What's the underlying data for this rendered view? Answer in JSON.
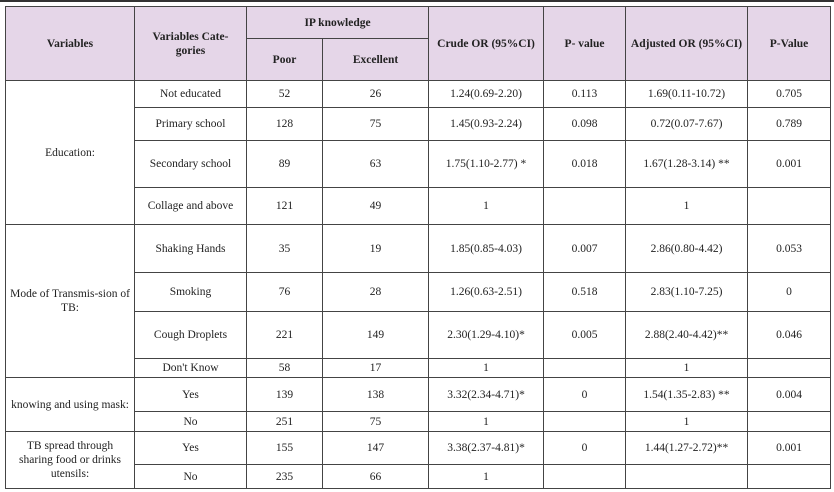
{
  "headers": {
    "variables": "Variables",
    "categories": "Variables Cate-gories",
    "ip_knowledge": "IP knowledge",
    "poor": "Poor",
    "excellent": "Excellent",
    "crude_or": "Crude OR (95%CI)",
    "p_value": "P- value",
    "adjusted_or": "Adjusted OR (95%CI)",
    "p_value2": "P-Value"
  },
  "groups": [
    {
      "variable": "Education:",
      "rows": [
        {
          "category": "Not educated",
          "poor": "52",
          "excellent": "26",
          "crude_or": "1.24(0.69-2.20)",
          "p": "0.113",
          "adj_or": "1.69(0.11-10.72)",
          "p2": "0.705"
        },
        {
          "category": "Primary school",
          "poor": "128",
          "excellent": "75",
          "crude_or": "1.45(0.93-2.24)",
          "p": "0.098",
          "adj_or": "0.72(0.07-7.67)",
          "p2": "0.789"
        },
        {
          "category": "Secondary school",
          "poor": "89",
          "excellent": "63",
          "crude_or": "1.75(1.10-2.77) *",
          "p": "0.018",
          "adj_or": "1.67(1.28-3.14) **",
          "p2": "0.001"
        },
        {
          "category": "Collage and above",
          "poor": "121",
          "excellent": "49",
          "crude_or": "1",
          "p": "",
          "adj_or": "1",
          "p2": ""
        }
      ]
    },
    {
      "variable": "Mode of Transmis-sion of TB:",
      "rows": [
        {
          "category": "Shaking Hands",
          "poor": "35",
          "excellent": "19",
          "crude_or": "1.85(0.85-4.03)",
          "p": "0.007",
          "adj_or": "2.86(0.80-4.42)",
          "p2": "0.053"
        },
        {
          "category": "Smoking",
          "poor": "76",
          "excellent": "28",
          "crude_or": "1.26(0.63-2.51)",
          "p": "0.518",
          "adj_or": "2.83(1.10-7.25)",
          "p2": "0"
        },
        {
          "category": "Cough Droplets",
          "poor": "221",
          "excellent": "149",
          "crude_or": "2.30(1.29-4.10)*",
          "p": "0.005",
          "adj_or": "2.88(2.40-4.42)**",
          "p2": "0.046"
        },
        {
          "category": "Don't Know",
          "poor": "58",
          "excellent": "17",
          "crude_or": "1",
          "p": "",
          "adj_or": "1",
          "p2": ""
        }
      ]
    },
    {
      "variable": "knowing and using mask:",
      "rows": [
        {
          "category": "Yes",
          "poor": "139",
          "excellent": "138",
          "crude_or": "3.32(2.34-4.71)*",
          "p": "0",
          "adj_or": "1.54(1.35-2.83) **",
          "p2": "0.004"
        },
        {
          "category": "No",
          "poor": "251",
          "excellent": "75",
          "crude_or": "1",
          "p": "",
          "adj_or": "1",
          "p2": ""
        }
      ]
    },
    {
      "variable": "TB spread through sharing food or drinks utensils:",
      "rows": [
        {
          "category": "Yes",
          "poor": "155",
          "excellent": "147",
          "crude_or": "3.38(2.37-4.81)*",
          "p": "0",
          "adj_or": "1.44(1.27-2.72)**",
          "p2": "0.001"
        },
        {
          "category": "No",
          "poor": "235",
          "excellent": "66",
          "crude_or": "1",
          "p": "",
          "adj_or": "",
          "p2": ""
        }
      ]
    }
  ],
  "colors": {
    "header_bg": "#e5d6e8"
  }
}
